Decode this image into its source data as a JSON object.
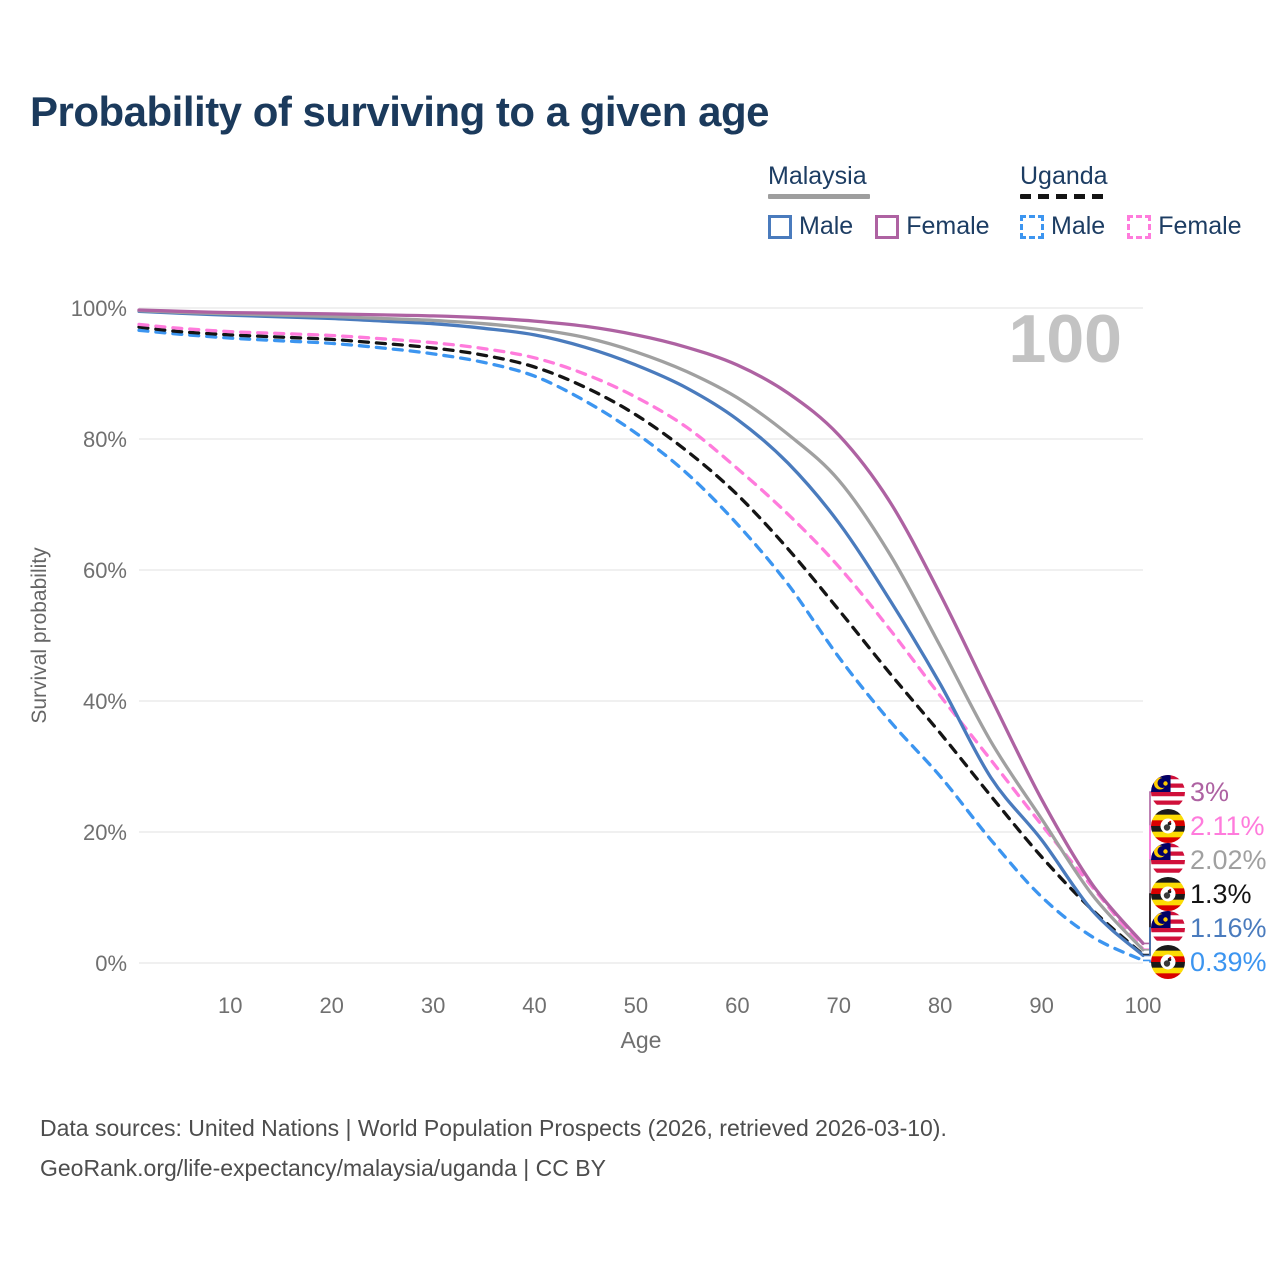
{
  "page": {
    "title": "Probability of surviving to a given age"
  },
  "legend": {
    "groups": [
      {
        "name": "Malaysia",
        "underline_color": "#9e9e9e",
        "underline_dashed": false,
        "items": [
          {
            "label": "Male",
            "color": "#4a7bbd",
            "dashed": false
          },
          {
            "label": "Female",
            "color": "#ae62a2",
            "dashed": false
          }
        ]
      },
      {
        "name": "Uganda",
        "underline_color": "#141414",
        "underline_dashed": true,
        "items": [
          {
            "label": "Male",
            "color": "#3c95f0",
            "dashed": true
          },
          {
            "label": "Female",
            "color": "#ff7bdc",
            "dashed": true
          }
        ]
      }
    ]
  },
  "chart_data": {
    "type": "line",
    "title": "Probability of surviving to a given age",
    "xlabel": "Age",
    "ylabel": "Survival probability",
    "xlim": [
      1,
      100
    ],
    "ylim": [
      0,
      100
    ],
    "grid": "horizontal",
    "watermark": "100",
    "x_ticks": [
      10,
      20,
      30,
      40,
      50,
      60,
      70,
      80,
      90,
      100
    ],
    "y_ticks": [
      {
        "value": 0,
        "label": "0%"
      },
      {
        "value": 20,
        "label": "20%"
      },
      {
        "value": 40,
        "label": "40%"
      },
      {
        "value": 60,
        "label": "60%"
      },
      {
        "value": 80,
        "label": "80%"
      },
      {
        "value": 100,
        "label": "100%"
      }
    ],
    "series": [
      {
        "name": "Uganda Male",
        "country": "Uganda",
        "flag": "uganda-flag-icon",
        "sex": "male",
        "color": "#3c95f0",
        "dashed": true,
        "end_value": 0.39,
        "end_label": "0.39%",
        "points": [
          [
            1,
            96.6
          ],
          [
            5,
            96.0
          ],
          [
            10,
            95.4
          ],
          [
            15,
            95.0
          ],
          [
            20,
            94.6
          ],
          [
            25,
            93.9
          ],
          [
            30,
            93.0
          ],
          [
            35,
            91.7
          ],
          [
            40,
            89.6
          ],
          [
            45,
            85.8
          ],
          [
            50,
            80.9
          ],
          [
            55,
            74.8
          ],
          [
            60,
            67.0
          ],
          [
            65,
            57.8
          ],
          [
            70,
            46.7
          ],
          [
            75,
            37.0
          ],
          [
            80,
            28.5
          ],
          [
            85,
            18.8
          ],
          [
            90,
            10.1
          ],
          [
            95,
            4.0
          ],
          [
            100,
            0.39
          ]
        ]
      },
      {
        "name": "Uganda",
        "country": "Uganda",
        "flag": "uganda-flag-icon",
        "sex": "all",
        "color": "#141414",
        "dashed": true,
        "end_value": 1.3,
        "end_label": "1.3%",
        "points": [
          [
            1,
            97.1
          ],
          [
            5,
            96.4
          ],
          [
            10,
            95.9
          ],
          [
            15,
            95.55
          ],
          [
            20,
            95.2
          ],
          [
            25,
            94.6
          ],
          [
            30,
            93.9
          ],
          [
            35,
            92.8
          ],
          [
            40,
            91.0
          ],
          [
            45,
            87.9
          ],
          [
            50,
            83.7
          ],
          [
            55,
            78.2
          ],
          [
            60,
            71.5
          ],
          [
            65,
            63.2
          ],
          [
            70,
            53.9
          ],
          [
            75,
            44.3
          ],
          [
            80,
            35.1
          ],
          [
            85,
            25.5
          ],
          [
            90,
            16.2
          ],
          [
            95,
            8.1
          ],
          [
            100,
            1.3
          ]
        ]
      },
      {
        "name": "Uganda Female",
        "country": "Uganda",
        "flag": "uganda-flag-icon",
        "sex": "female",
        "color": "#ff7bdc",
        "dashed": true,
        "end_value": 2.11,
        "end_label": "2.11%",
        "points": [
          [
            1,
            97.5
          ],
          [
            5,
            96.9
          ],
          [
            10,
            96.4
          ],
          [
            15,
            96.1
          ],
          [
            20,
            95.8
          ],
          [
            25,
            95.3
          ],
          [
            30,
            94.7
          ],
          [
            35,
            93.8
          ],
          [
            40,
            92.4
          ],
          [
            45,
            89.9
          ],
          [
            50,
            86.4
          ],
          [
            55,
            81.8
          ],
          [
            60,
            75.5
          ],
          [
            65,
            68.5
          ],
          [
            70,
            60.5
          ],
          [
            75,
            51.0
          ],
          [
            80,
            40.8
          ],
          [
            85,
            31.0
          ],
          [
            90,
            21.1
          ],
          [
            95,
            11.6
          ],
          [
            100,
            2.11
          ]
        ]
      },
      {
        "name": "Malaysia Male",
        "country": "Malaysia",
        "flag": "malaysia-flag-icon",
        "sex": "male",
        "color": "#4a7bbd",
        "dashed": false,
        "end_value": 1.16,
        "end_label": "1.16%",
        "points": [
          [
            1,
            99.5
          ],
          [
            5,
            99.2
          ],
          [
            10,
            98.9
          ],
          [
            15,
            98.65
          ],
          [
            20,
            98.4
          ],
          [
            25,
            98.0
          ],
          [
            30,
            97.6
          ],
          [
            35,
            96.9
          ],
          [
            40,
            95.9
          ],
          [
            45,
            94.0
          ],
          [
            50,
            91.3
          ],
          [
            55,
            87.8
          ],
          [
            60,
            83.0
          ],
          [
            65,
            76.3
          ],
          [
            70,
            67.2
          ],
          [
            75,
            55.5
          ],
          [
            80,
            42.6
          ],
          [
            85,
            28.3
          ],
          [
            90,
            18.8
          ],
          [
            95,
            8.0
          ],
          [
            100,
            1.16
          ]
        ]
      },
      {
        "name": "Malaysia",
        "country": "Malaysia",
        "flag": "malaysia-flag-icon",
        "sex": "all",
        "color": "#a0a0a0",
        "dashed": false,
        "end_value": 2.02,
        "end_label": "2.02%",
        "points": [
          [
            1,
            99.6
          ],
          [
            5,
            99.35
          ],
          [
            10,
            99.1
          ],
          [
            15,
            98.9
          ],
          [
            20,
            98.7
          ],
          [
            25,
            98.4
          ],
          [
            30,
            98.1
          ],
          [
            35,
            97.6
          ],
          [
            40,
            96.8
          ],
          [
            45,
            95.5
          ],
          [
            50,
            93.3
          ],
          [
            55,
            90.3
          ],
          [
            60,
            86.3
          ],
          [
            65,
            80.7
          ],
          [
            70,
            73.7
          ],
          [
            75,
            62.5
          ],
          [
            80,
            48.4
          ],
          [
            85,
            33.8
          ],
          [
            90,
            22.0
          ],
          [
            95,
            10.4
          ],
          [
            100,
            2.02
          ]
        ]
      },
      {
        "name": "Malaysia Female",
        "country": "Malaysia",
        "flag": "malaysia-flag-icon",
        "sex": "female",
        "color": "#ae62a2",
        "dashed": false,
        "end_value": 3.0,
        "end_label": "3%",
        "points": [
          [
            1,
            99.7
          ],
          [
            5,
            99.5
          ],
          [
            10,
            99.3
          ],
          [
            15,
            99.2
          ],
          [
            20,
            99.1
          ],
          [
            25,
            98.95
          ],
          [
            30,
            98.8
          ],
          [
            35,
            98.5
          ],
          [
            40,
            98.0
          ],
          [
            45,
            97.2
          ],
          [
            50,
            95.9
          ],
          [
            55,
            94.0
          ],
          [
            60,
            91.3
          ],
          [
            65,
            87.0
          ],
          [
            70,
            80.6
          ],
          [
            75,
            70.5
          ],
          [
            80,
            56.3
          ],
          [
            85,
            40.5
          ],
          [
            90,
            25.0
          ],
          [
            95,
            12.0
          ],
          [
            100,
            3.0
          ]
        ]
      }
    ]
  },
  "colors": {
    "title": "#1b3a5c",
    "legend_text": "#1d3d63",
    "tick_text": "#707070",
    "gridline": "#e8e8e8",
    "watermark": "#c3c3c3",
    "footer_text": "#4d4d4d"
  },
  "footer": {
    "line1": "Data sources: United Nations | World Population Prospects (2026, retrieved 2026-03-10).",
    "line2": "GeoRank.org/life-expectancy/malaysia/uganda | CC BY"
  }
}
